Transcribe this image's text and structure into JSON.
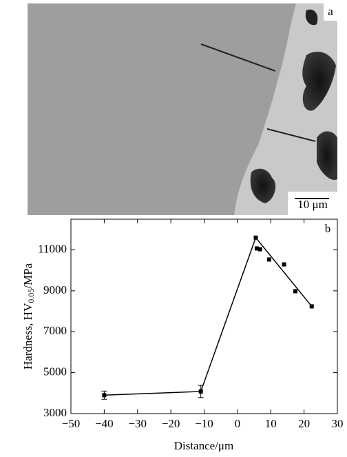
{
  "micrograph": {
    "panel_label": "a",
    "scale_label": "10 μm"
  },
  "chart_data": {
    "type": "scatter",
    "panel_label": "b",
    "xlabel": "Distance/μm",
    "ylabel": "Hardness, HV",
    "ylabel_sub": "0.05",
    "ylabel_suffix": "/MPa",
    "xlim": [
      -50,
      30
    ],
    "ylim": [
      3000,
      12500
    ],
    "xticks": [
      {
        "value": -50,
        "label": "−50"
      },
      {
        "value": -40,
        "label": "−40"
      },
      {
        "value": -30,
        "label": "−30"
      },
      {
        "value": -20,
        "label": "−20"
      },
      {
        "value": -10,
        "label": "−10"
      },
      0,
      10,
      20,
      30
    ],
    "yticks": [
      3000,
      5000,
      7000,
      9000,
      11000
    ],
    "color": "#000000",
    "series": [
      {
        "x": [
          -40,
          -11,
          5.5,
          5.8,
          6.8,
          9.5,
          14,
          17.4,
          22.3
        ],
        "values": [
          3900,
          4080,
          11600,
          11070,
          11030,
          10530,
          10290,
          8980,
          8240
        ],
        "errors": [
          200,
          300,
          null,
          null,
          null,
          null,
          null,
          null,
          null
        ]
      },
      {
        "type": "line",
        "x": [
          -40,
          -11,
          5.5,
          22.3
        ],
        "values": [
          3900,
          4080,
          11600,
          8240
        ]
      }
    ]
  }
}
